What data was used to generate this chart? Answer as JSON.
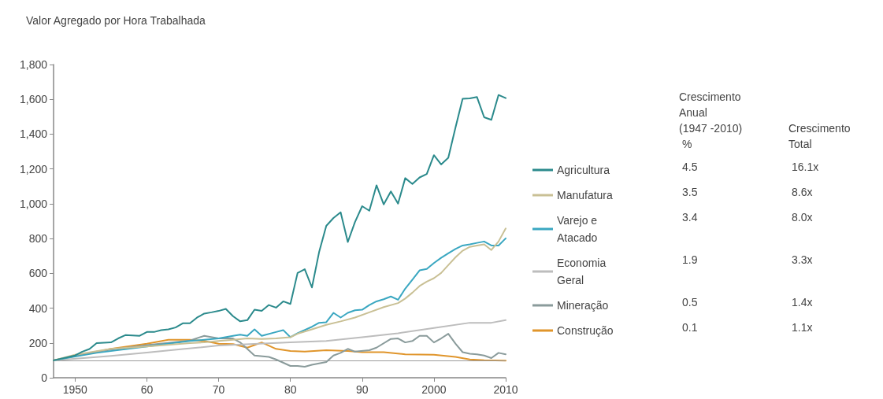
{
  "chart_data": {
    "type": "line",
    "title": "Valor Agregado por Hora Trabalhada",
    "xlim": [
      1947,
      2010
    ],
    "xticks": [
      {
        "value": 1950,
        "label": "1950"
      },
      {
        "value": 1960,
        "label": "60"
      },
      {
        "value": 1970,
        "label": "70"
      },
      {
        "value": 1980,
        "label": "80"
      },
      {
        "value": 1990,
        "label": "90"
      },
      {
        "value": 2000,
        "label": "2000"
      },
      {
        "value": 2010,
        "label": "2010"
      }
    ],
    "ylim": [
      0,
      1800
    ],
    "yticks": [
      0,
      200,
      400,
      600,
      800,
      {
        "value": 1000,
        "label": "1,000"
      },
      {
        "value": 1200,
        "label": "1,200"
      },
      {
        "value": 1400,
        "label": "1,400"
      },
      {
        "value": 1600,
        "label": "1,600"
      },
      {
        "value": 1800,
        "label": "1,800"
      }
    ],
    "grid": false,
    "legend": "right",
    "marker": "none",
    "line_style": "solid",
    "ref_lines": [
      {
        "axis": "y",
        "value": 100,
        "color": "#9a9a9a"
      }
    ],
    "annotations": [
      "Crescimento\nAnual\n(1947 -2010)\n %",
      "Crescimento\nTotal",
      "4.5",
      "16.1x",
      "3.5",
      "8.6x",
      "3.4",
      "8.0x",
      "1.9",
      "3.3x",
      "0.5",
      "1.4x",
      "0.1",
      "1.1x"
    ],
    "series": [
      {
        "name": "Agricultura",
        "color": "#2b8a8c",
        "x": [
          1947,
          1950,
          1951,
          1952,
          1953,
          1955,
          1956,
          1957,
          1959,
          1960,
          1961,
          1962,
          1963,
          1964,
          1965,
          1966,
          1967,
          1968,
          1969,
          1970,
          1971,
          1972,
          1973,
          1974,
          1975,
          1976,
          1977,
          1978,
          1979,
          1980,
          1981,
          1982,
          1983,
          1984,
          1985,
          1986,
          1987,
          1988,
          1989,
          1990,
          1991,
          1992,
          1993,
          1994,
          1995,
          1996,
          1997,
          1998,
          1999,
          2000,
          2001,
          2002,
          2003,
          2004,
          2005,
          2006,
          2007,
          2008,
          2009,
          2010
        ],
        "values": [
          100,
          128,
          150,
          165,
          199,
          203,
          226,
          245,
          241,
          263,
          263,
          274,
          278,
          289,
          313,
          313,
          346,
          369,
          376,
          384,
          396,
          354,
          324,
          331,
          391,
          384,
          418,
          403,
          439,
          424,
          602,
          624,
          519,
          722,
          873,
          918,
          951,
          780,
          895,
          986,
          960,
          1106,
          996,
          1071,
          1001,
          1147,
          1114,
          1151,
          1171,
          1279,
          1226,
          1264,
          1437,
          1603,
          1606,
          1613,
          1497,
          1482,
          1625,
          1607
        ]
      },
      {
        "name": "Manufatura",
        "color": "#c9c095",
        "x": [
          1947,
          1950,
          1955,
          1960,
          1966,
          1968,
          1970,
          1972,
          1974,
          1976,
          1978,
          1980,
          1981,
          1983,
          1985,
          1987,
          1989,
          1991,
          1993,
          1995,
          1996,
          1997,
          1998,
          1999,
          2000,
          2001,
          2002,
          2003,
          2004,
          2005,
          2006,
          2007,
          2008,
          2009,
          2010
        ],
        "values": [
          100,
          132,
          166,
          180,
          199,
          203,
          211,
          218,
          226,
          223,
          226,
          233,
          253,
          278,
          304,
          324,
          346,
          376,
          406,
          429,
          455,
          489,
          527,
          552,
          572,
          602,
          647,
          692,
          730,
          752,
          760,
          767,
          734,
          783,
          858
        ]
      },
      {
        "name": "Varejo e Atacado",
        "color": "#3aa7c1",
        "x": [
          1947,
          1953,
          1960,
          1966,
          1970,
          1972,
          1973,
          1974,
          1975,
          1976,
          1978,
          1979,
          1980,
          1981,
          1983,
          1984,
          1985,
          1986,
          1987,
          1988,
          1989,
          1990,
          1991,
          1992,
          1993,
          1994,
          1995,
          1996,
          1997,
          1998,
          1999,
          2000,
          2001,
          2002,
          2003,
          2004,
          2005,
          2006,
          2007,
          2008,
          2009,
          2010
        ],
        "values": [
          100,
          143,
          180,
          211,
          226,
          241,
          248,
          241,
          278,
          241,
          263,
          274,
          233,
          256,
          293,
          316,
          319,
          373,
          346,
          373,
          388,
          391,
          418,
          439,
          451,
          467,
          448,
          512,
          564,
          617,
          625,
          659,
          689,
          715,
          740,
          760,
          767,
          775,
          783,
          760,
          760,
          801
        ]
      },
      {
        "name": "Economia Geral",
        "color": "#bdbdbd",
        "x": [
          1947,
          1955,
          1960,
          1965,
          1970,
          1975,
          1980,
          1985,
          1990,
          1995,
          2000,
          2005,
          2008,
          2010
        ],
        "values": [
          100,
          125,
          145,
          165,
          185,
          195,
          203,
          211,
          233,
          256,
          286,
          316,
          316,
          331
        ]
      },
      {
        "name": "Mineração",
        "color": "#8a9b9b",
        "x": [
          1947,
          1953,
          1960,
          1966,
          1968,
          1970,
          1972,
          1973,
          1975,
          1977,
          1978,
          1980,
          1981,
          1982,
          1983,
          1985,
          1986,
          1987,
          1988,
          1989,
          1991,
          1992,
          1994,
          1995,
          1996,
          1997,
          1998,
          1999,
          2000,
          2001,
          2002,
          2003,
          2004,
          2005,
          2006,
          2007,
          2008,
          2009,
          2010
        ],
        "values": [
          100,
          150,
          188,
          214,
          241,
          226,
          226,
          203,
          128,
          120,
          105,
          68,
          68,
          63,
          75,
          90,
          128,
          143,
          166,
          150,
          158,
          173,
          223,
          226,
          203,
          211,
          241,
          241,
          203,
          226,
          253,
          196,
          147,
          138,
          135,
          128,
          113,
          143,
          135
        ]
      },
      {
        "name": "Construção",
        "color": "#e0952b",
        "x": [
          1947,
          1951,
          1955,
          1960,
          1963,
          1966,
          1968,
          1970,
          1972,
          1974,
          1976,
          1978,
          1980,
          1982,
          1985,
          1988,
          1990,
          1993,
          1996,
          2000,
          2003,
          2005,
          2007,
          2010
        ],
        "values": [
          100,
          132,
          166,
          196,
          218,
          218,
          211,
          196,
          193,
          173,
          203,
          166,
          154,
          150,
          158,
          154,
          147,
          147,
          135,
          132,
          120,
          105,
          101,
          98
        ]
      }
    ]
  }
}
